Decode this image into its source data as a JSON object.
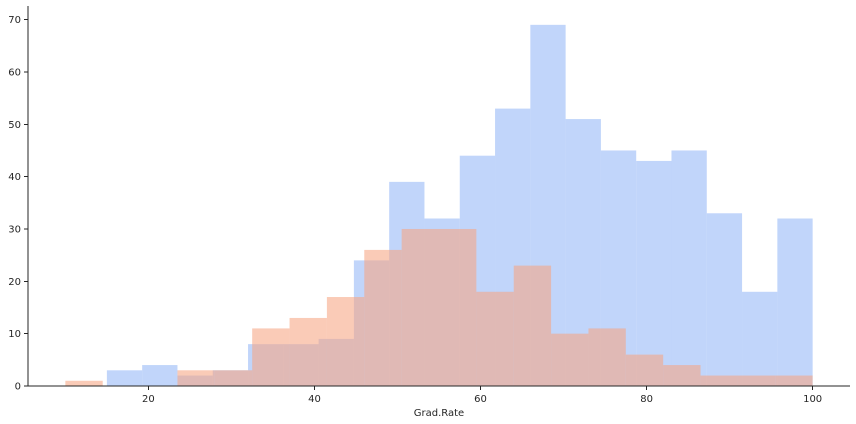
{
  "chart_data": {
    "type": "bar",
    "xlabel": "Grad.Rate",
    "ylabel": "",
    "xlim": [
      5.5,
      104.5
    ],
    "ylim": [
      0,
      72.6
    ],
    "x_ticks": [
      20,
      40,
      60,
      80,
      100
    ],
    "y_ticks": [
      0,
      10,
      20,
      30,
      40,
      50,
      60,
      70
    ],
    "grid": false,
    "legend": "none",
    "series": [
      {
        "color": "#94b6f7",
        "opacity": 0.58,
        "bins": [
          [
            15,
            19.25,
            3
          ],
          [
            19.25,
            23.5,
            4
          ],
          [
            23.5,
            27.75,
            2
          ],
          [
            27.75,
            32,
            3
          ],
          [
            32,
            36.25,
            8
          ],
          [
            36.25,
            40.5,
            8
          ],
          [
            40.5,
            44.75,
            9
          ],
          [
            44.75,
            49,
            24
          ],
          [
            49,
            53.25,
            39
          ],
          [
            53.25,
            57.5,
            32
          ],
          [
            57.5,
            61.75,
            44
          ],
          [
            61.75,
            66,
            53
          ],
          [
            66,
            70.25,
            69
          ],
          [
            70.25,
            74.5,
            51
          ],
          [
            74.5,
            78.75,
            45
          ],
          [
            78.75,
            83,
            43
          ],
          [
            83,
            87.25,
            45
          ],
          [
            87.25,
            91.5,
            33
          ],
          [
            91.5,
            95.75,
            18
          ],
          [
            95.75,
            100,
            32
          ]
        ]
      },
      {
        "color": "#f6a683",
        "opacity": 0.58,
        "bins": [
          [
            10,
            14.5,
            1
          ],
          [
            14.5,
            19,
            0
          ],
          [
            19,
            23.5,
            0
          ],
          [
            23.5,
            28,
            3
          ],
          [
            28,
            32.5,
            3
          ],
          [
            32.5,
            37,
            11
          ],
          [
            37,
            41.5,
            13
          ],
          [
            41.5,
            46,
            17
          ],
          [
            46,
            50.5,
            26
          ],
          [
            50.5,
            55,
            30
          ],
          [
            55,
            59.5,
            30
          ],
          [
            59.5,
            64,
            18
          ],
          [
            64,
            68.5,
            23
          ],
          [
            68.5,
            73,
            10
          ],
          [
            73,
            77.5,
            11
          ],
          [
            77.5,
            82,
            6
          ],
          [
            82,
            86.5,
            4
          ],
          [
            86.5,
            91,
            2
          ],
          [
            91,
            95.5,
            2
          ],
          [
            95.5,
            100,
            2
          ]
        ]
      }
    ]
  }
}
